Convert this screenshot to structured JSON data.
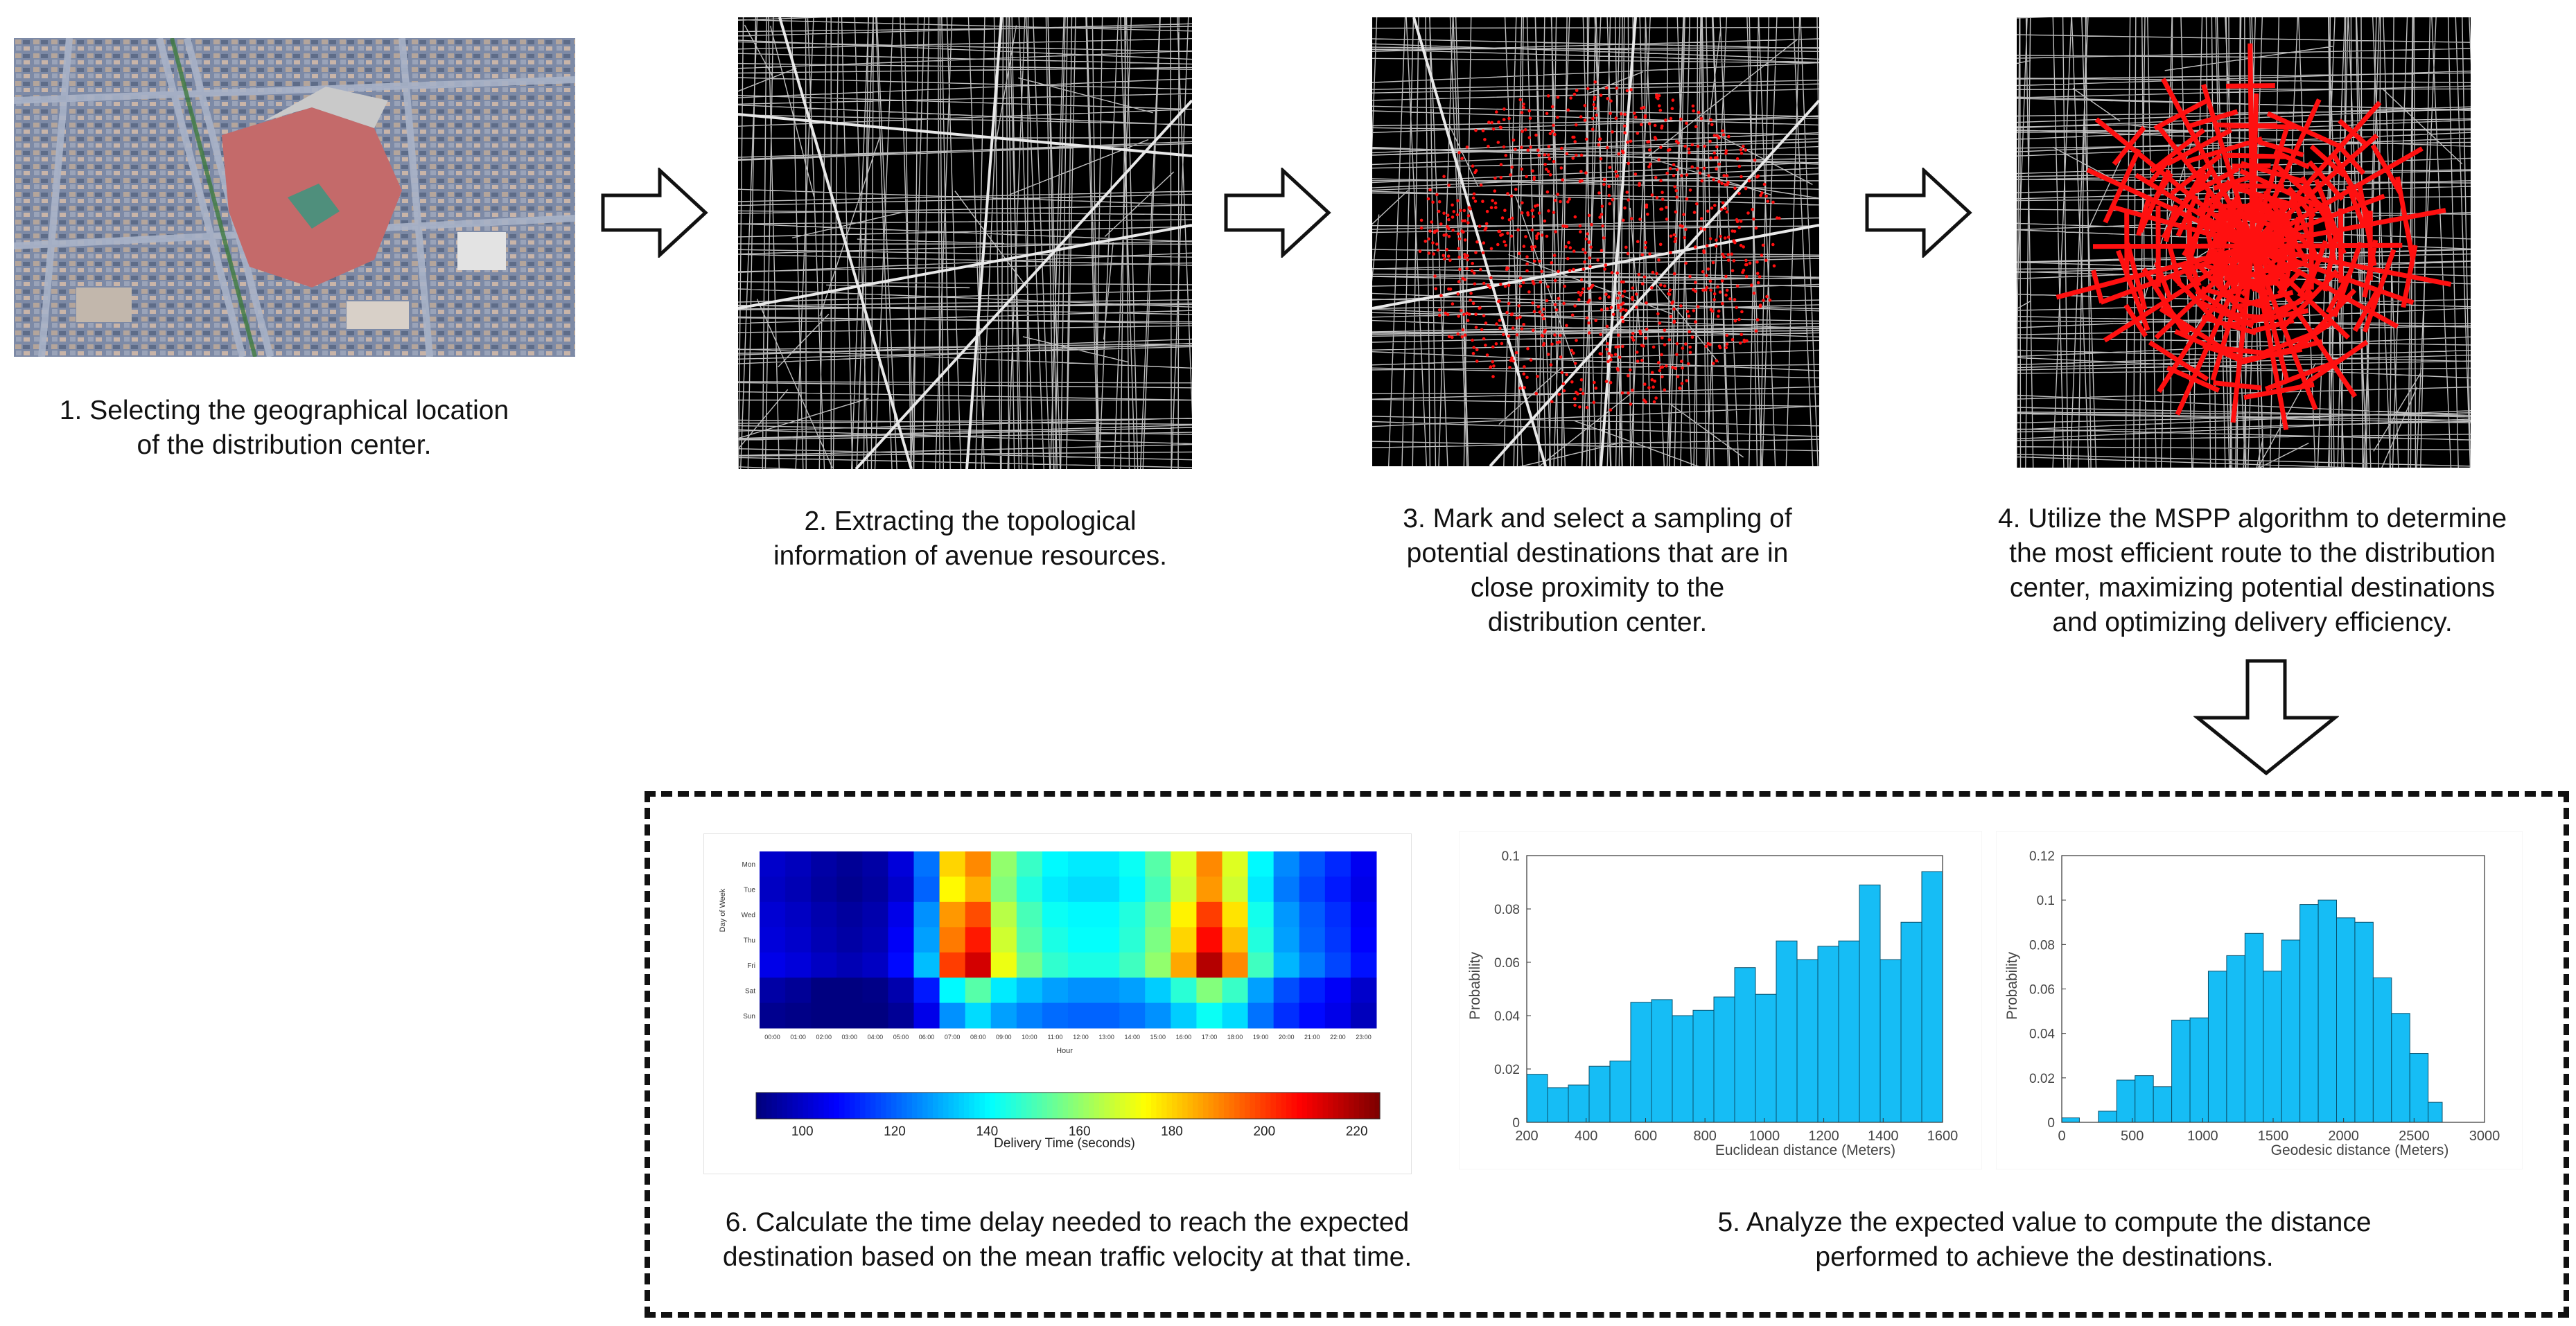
{
  "steps": {
    "s1": "1. Selecting the geographical location\nof the distribution center.",
    "s2": "2. Extracting the topological\ninformation of avenue resources.",
    "s3": "3. Mark and select a sampling of\npotential destinations that are in\nclose proximity to the\ndistribution center.",
    "s4": "4. Utilize the MSPP algorithm to determine\nthe most efficient route to the distribution\ncenter, maximizing potential destinations\nand optimizing delivery efficiency.",
    "s5": "5. Analyze the expected value to compute the distance\nperformed to achieve the destinations.",
    "s6": "6. Calculate the time delay needed to reach the  expected\ndestination based on the mean traffic velocity at that time."
  },
  "colors": {
    "route_red": "#ff1010",
    "map_bg": "#000000",
    "road": "#bfbfbf",
    "bar": "#16bdf5"
  },
  "chart_data": [
    {
      "type": "heatmap",
      "ylabel": "Day of Week",
      "xlabel": "Hour",
      "rows": [
        "Mon",
        "Tue",
        "Wed",
        "Thu",
        "Fri",
        "Sat",
        "Sun"
      ],
      "columns": [
        "00:00",
        "01:00",
        "02:00",
        "03:00",
        "04:00",
        "05:00",
        "06:00",
        "07:00",
        "08:00",
        "09:00",
        "10:00",
        "11:00",
        "12:00",
        "13:00",
        "14:00",
        "15:00",
        "16:00",
        "17:00",
        "18:00",
        "19:00",
        "20:00",
        "21:00",
        "22:00",
        "23:00"
      ],
      "colorbar_label": "Delivery Time (seconds)",
      "colorbar_ticks": [
        100,
        120,
        140,
        160,
        180,
        200,
        220
      ],
      "range": [
        90,
        225
      ],
      "values": [
        [
          100,
          98,
          95,
          93,
          95,
          102,
          122,
          180,
          190,
          160,
          148,
          140,
          138,
          138,
          142,
          152,
          170,
          190,
          170,
          140,
          125,
          118,
          112,
          105
        ],
        [
          99,
          97,
          94,
          92,
          94,
          100,
          120,
          175,
          185,
          158,
          145,
          138,
          136,
          136,
          140,
          150,
          168,
          188,
          168,
          138,
          123,
          116,
          110,
          104
        ],
        [
          101,
          99,
          96,
          94,
          96,
          104,
          126,
          188,
          198,
          165,
          150,
          142,
          140,
          140,
          145,
          155,
          176,
          200,
          178,
          143,
          127,
          119,
          113,
          106
        ],
        [
          102,
          100,
          97,
          95,
          97,
          106,
          128,
          192,
          205,
          168,
          152,
          144,
          141,
          141,
          146,
          157,
          180,
          207,
          183,
          145,
          128,
          120,
          114,
          107
        ],
        [
          104,
          102,
          99,
          97,
          99,
          108,
          132,
          200,
          214,
          172,
          156,
          147,
          144,
          144,
          149,
          160,
          186,
          218,
          190,
          149,
          131,
          123,
          116,
          109
        ],
        [
          95,
          93,
          90,
          89,
          91,
          96,
          110,
          140,
          152,
          138,
          132,
          128,
          126,
          126,
          128,
          134,
          146,
          158,
          148,
          128,
          117,
          111,
          106,
          100
        ],
        [
          92,
          91,
          89,
          88,
          89,
          93,
          104,
          126,
          136,
          128,
          124,
          121,
          120,
          120,
          122,
          126,
          134,
          142,
          136,
          122,
          113,
          108,
          104,
          98
        ]
      ]
    },
    {
      "type": "bar",
      "xlabel": "Euclidean distance (Meters)",
      "ylabel": "Probability",
      "xlim": [
        200,
        1600
      ],
      "ylim": [
        0,
        0.1
      ],
      "xticks": [
        200,
        400,
        600,
        800,
        1000,
        1200,
        1400,
        1600
      ],
      "yticks": [
        0,
        0.02,
        0.04,
        0.06,
        0.08,
        0.1
      ],
      "bin_start": 200,
      "bin_width": 70,
      "values": [
        0.018,
        0.013,
        0.014,
        0.021,
        0.023,
        0.045,
        0.046,
        0.04,
        0.042,
        0.047,
        0.058,
        0.048,
        0.068,
        0.061,
        0.066,
        0.068,
        0.089,
        0.061,
        0.075,
        0.094
      ]
    },
    {
      "type": "bar",
      "xlabel": "Geodesic distance (Meters)",
      "ylabel": "Probability",
      "xlim": [
        0,
        3000
      ],
      "ylim": [
        0,
        0.12
      ],
      "xticks": [
        0,
        500,
        1000,
        1500,
        2000,
        2500,
        3000
      ],
      "yticks": [
        0,
        0.02,
        0.04,
        0.06,
        0.08,
        0.1,
        0.12
      ],
      "bins": [
        {
          "x0": 0,
          "x1": 125,
          "v": 0.002
        },
        {
          "x0": 260,
          "x1": 390,
          "v": 0.005
        },
        {
          "x0": 390,
          "x1": 520,
          "v": 0.019
        },
        {
          "x0": 520,
          "x1": 650,
          "v": 0.021
        },
        {
          "x0": 650,
          "x1": 780,
          "v": 0.016
        },
        {
          "x0": 780,
          "x1": 910,
          "v": 0.046
        },
        {
          "x0": 910,
          "x1": 1040,
          "v": 0.047
        },
        {
          "x0": 1040,
          "x1": 1170,
          "v": 0.068
        },
        {
          "x0": 1170,
          "x1": 1300,
          "v": 0.075
        },
        {
          "x0": 1300,
          "x1": 1430,
          "v": 0.085
        },
        {
          "x0": 1430,
          "x1": 1560,
          "v": 0.068
        },
        {
          "x0": 1560,
          "x1": 1690,
          "v": 0.082
        },
        {
          "x0": 1690,
          "x1": 1820,
          "v": 0.098
        },
        {
          "x0": 1820,
          "x1": 1950,
          "v": 0.1
        },
        {
          "x0": 1950,
          "x1": 2080,
          "v": 0.092
        },
        {
          "x0": 2080,
          "x1": 2210,
          "v": 0.09
        },
        {
          "x0": 2210,
          "x1": 2340,
          "v": 0.065
        },
        {
          "x0": 2340,
          "x1": 2470,
          "v": 0.049
        },
        {
          "x0": 2470,
          "x1": 2600,
          "v": 0.031
        },
        {
          "x0": 2600,
          "x1": 2700,
          "v": 0.009
        }
      ]
    }
  ]
}
